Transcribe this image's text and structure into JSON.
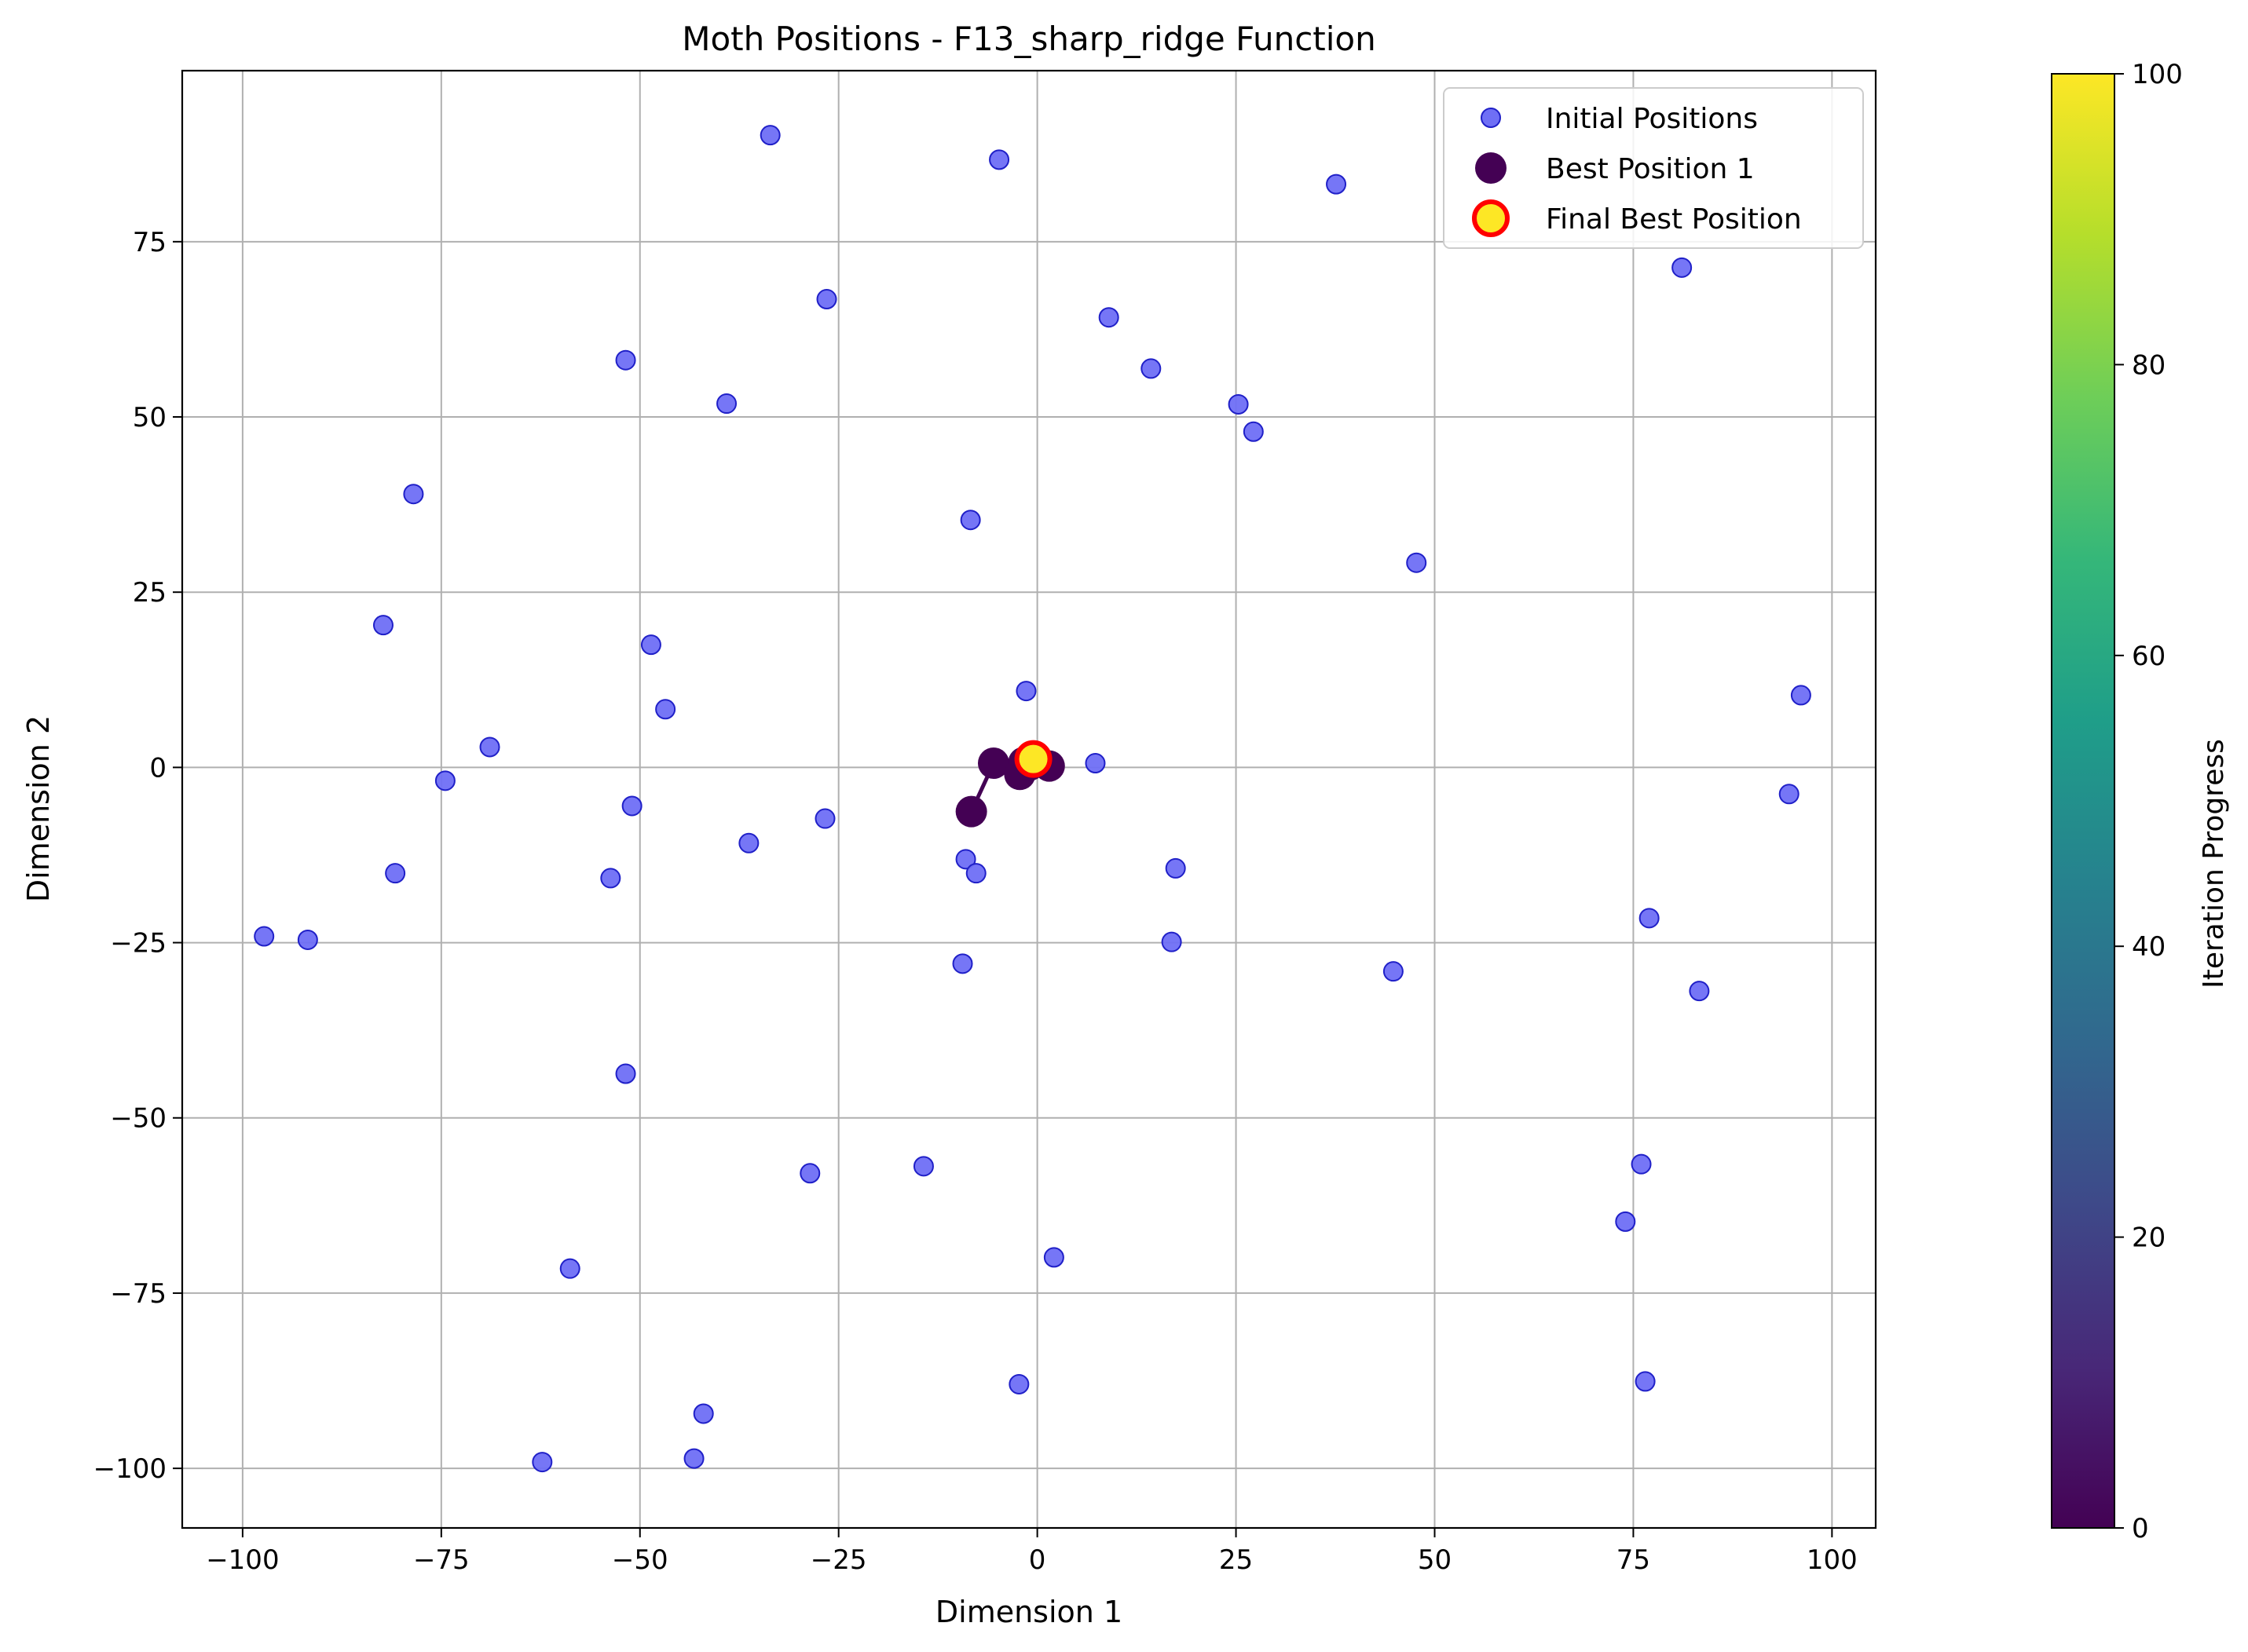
{
  "chart_data": {
    "type": "scatter",
    "title": "Moth Positions - F13_sharp_ridge Function",
    "xlabel": "Dimension 1",
    "ylabel": "Dimension 2",
    "xlim": [
      -107.6,
      105.5
    ],
    "ylim": [
      -108.5,
      99.4
    ],
    "xticks": [
      -100,
      -75,
      -50,
      -25,
      0,
      25,
      50,
      75,
      100
    ],
    "xtick_labels": [
      "−100",
      "−75",
      "−50",
      "−25",
      "0",
      "25",
      "50",
      "75",
      "100"
    ],
    "yticks": [
      -100,
      -75,
      -50,
      -25,
      0,
      25,
      50,
      75
    ],
    "ytick_labels": [
      "−100",
      "−75",
      "−50",
      "−25",
      "0",
      "25",
      "50",
      "75"
    ],
    "grid": true,
    "legend_position": "top-right",
    "legend": [
      {
        "label": "Initial Positions",
        "marker": "initial"
      },
      {
        "label": "Best Position 1",
        "marker": "best"
      },
      {
        "label": "Final Best Position",
        "marker": "final"
      }
    ],
    "colors": {
      "initial_fill": "#6f6ff5",
      "initial_edge": "#2020c8",
      "best": "#440154",
      "final_fill": "#fde725",
      "final_edge": "#ff0000",
      "grid": "#b0b0b0"
    },
    "series": [
      {
        "name": "Initial Positions",
        "points": [
          [
            -33.6,
            90.2
          ],
          [
            -4.8,
            86.7
          ],
          [
            37.6,
            83.2
          ],
          [
            81.1,
            71.3
          ],
          [
            -26.5,
            66.8
          ],
          [
            9.0,
            64.2
          ],
          [
            -51.8,
            58.1
          ],
          [
            14.3,
            56.9
          ],
          [
            -39.1,
            51.9
          ],
          [
            25.3,
            51.8
          ],
          [
            27.2,
            47.9
          ],
          [
            -78.5,
            39.0
          ],
          [
            -8.4,
            35.3
          ],
          [
            47.7,
            29.2
          ],
          [
            -82.3,
            20.3
          ],
          [
            -48.6,
            17.5
          ],
          [
            -1.4,
            10.9
          ],
          [
            96.1,
            10.3
          ],
          [
            -46.8,
            8.3
          ],
          [
            -68.9,
            2.9
          ],
          [
            7.3,
            0.6
          ],
          [
            -74.5,
            -1.9
          ],
          [
            94.6,
            -3.8
          ],
          [
            -51.0,
            -5.5
          ],
          [
            -26.7,
            -7.3
          ],
          [
            -36.3,
            -10.8
          ],
          [
            -9.0,
            -13.1
          ],
          [
            17.4,
            -14.4
          ],
          [
            -7.7,
            -15.1
          ],
          [
            -80.8,
            -15.1
          ],
          [
            -53.7,
            -15.8
          ],
          [
            77.0,
            -21.5
          ],
          [
            -97.3,
            -24.1
          ],
          [
            -91.8,
            -24.6
          ],
          [
            16.9,
            -24.9
          ],
          [
            -9.4,
            -28.0
          ],
          [
            44.8,
            -29.1
          ],
          [
            83.3,
            -31.9
          ],
          [
            -51.8,
            -43.7
          ],
          [
            -14.3,
            -56.9
          ],
          [
            76.0,
            -56.6
          ],
          [
            -28.6,
            -57.9
          ],
          [
            74.0,
            -64.8
          ],
          [
            2.1,
            -69.9
          ],
          [
            -58.8,
            -71.5
          ],
          [
            -2.3,
            -88.0
          ],
          [
            76.5,
            -87.6
          ],
          [
            -42.0,
            -92.2
          ],
          [
            -62.3,
            -99.1
          ],
          [
            -43.2,
            -98.6
          ]
        ]
      },
      {
        "name": "Best Position 1",
        "points": [
          [
            -8.3,
            -6.3
          ],
          [
            -5.5,
            0.6
          ],
          [
            1.5,
            0.2
          ],
          [
            -1.7,
            0.7
          ],
          [
            -2.2,
            -1.0
          ],
          [
            -1.0,
            0.3
          ]
        ]
      },
      {
        "name": "Final Best Position",
        "points": [
          [
            -0.5,
            1.2
          ]
        ]
      }
    ],
    "trajectory": [
      [
        -8.3,
        -6.3
      ],
      [
        -5.5,
        0.6
      ],
      [
        -2.2,
        -1.0
      ],
      [
        1.5,
        0.2
      ],
      [
        -1.7,
        0.7
      ],
      [
        -1.0,
        0.3
      ],
      [
        -0.7,
        2.3
      ],
      [
        -0.5,
        1.2
      ]
    ],
    "colorbar": {
      "label": "Iteration Progress",
      "min": 0,
      "max": 100,
      "ticks": [
        0,
        20,
        40,
        60,
        80,
        100
      ],
      "colormap": "viridis",
      "stops": [
        "#440154",
        "#482878",
        "#3e4989",
        "#31688e",
        "#26828e",
        "#1f9e89",
        "#35b779",
        "#6ece58",
        "#b5de2b",
        "#fde725"
      ]
    }
  }
}
